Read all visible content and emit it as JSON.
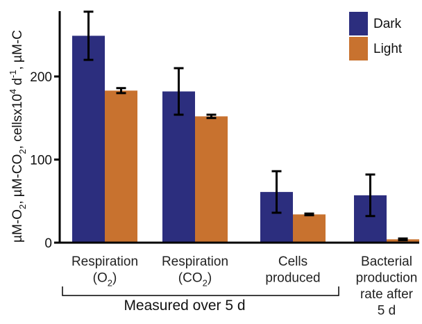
{
  "chart_data": {
    "type": "bar",
    "title": "",
    "xlabel": "",
    "ylabel_parts": [
      {
        "text": "µM-O"
      },
      {
        "text": "2",
        "sub": true
      },
      {
        "text": ", µM-CO"
      },
      {
        "text": "2",
        "sub": true
      },
      {
        "text": ", cellsx10"
      },
      {
        "text": "4",
        "sup": true
      },
      {
        "text": " d"
      },
      {
        "text": "-1",
        "sup": true
      },
      {
        "text": ", µM-C"
      }
    ],
    "ylim": [
      0,
      280
    ],
    "yticks": [
      "0",
      "100",
      "200"
    ],
    "grid": false,
    "legend_position": "top-right",
    "categories": [
      {
        "lines": [
          [
            {
              "text": "Respiration"
            }
          ],
          [
            {
              "text": "(O"
            },
            {
              "text": "2",
              "sub": true
            },
            {
              "text": ")"
            }
          ]
        ]
      },
      {
        "lines": [
          [
            {
              "text": "Respiration"
            }
          ],
          [
            {
              "text": "(CO"
            },
            {
              "text": "2",
              "sub": true
            },
            {
              "text": ")"
            }
          ]
        ]
      },
      {
        "lines": [
          [
            {
              "text": "Cells"
            }
          ],
          [
            {
              "text": "produced"
            }
          ]
        ]
      },
      {
        "lines": [
          [
            {
              "text": "Bacterial"
            }
          ],
          [
            {
              "text": "production"
            }
          ],
          [
            {
              "text": "rate after"
            }
          ],
          [
            {
              "text": "5 d"
            }
          ]
        ]
      }
    ],
    "group_label": "Measured over 5 d",
    "series": [
      {
        "name": "Dark",
        "color": "#2c2e7e",
        "values": [
          249,
          182,
          61,
          57
        ],
        "error": [
          29,
          28,
          25,
          25
        ]
      },
      {
        "name": "Light",
        "color": "#c8722f",
        "values": [
          183,
          152,
          34,
          4
        ],
        "error": [
          3,
          2,
          1,
          1
        ]
      }
    ]
  }
}
